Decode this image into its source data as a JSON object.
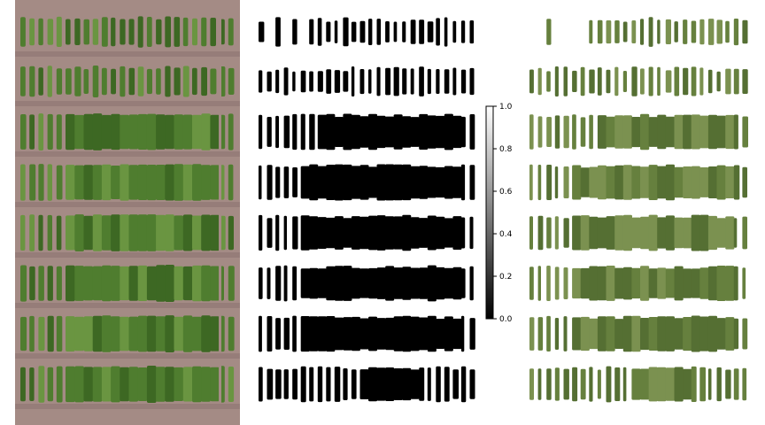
{
  "figure": {
    "panels": [
      {
        "name": "rgb-orthomosaic",
        "kind": "aerial photograph of field plots"
      },
      {
        "name": "binary-canopy-mask",
        "kind": "black/white vegetation mask"
      },
      {
        "name": "masked-rgb",
        "kind": "vegetation pixels only on white background"
      }
    ],
    "plot_rows": 8,
    "colors": {
      "soil": "#a48b85",
      "soil_dark": "#8e7571",
      "plant": "#4f7d2f",
      "plant_dark": "#3d6823",
      "plant_light": "#6a9541",
      "mask_fill": "#000000",
      "masked_plant": "#66803e"
    }
  },
  "colorbar": {
    "min": 0.0,
    "max": 1.0,
    "colormap": "gray",
    "ticks": [
      "0.0",
      "0.2",
      "0.4",
      "0.6",
      "0.8",
      "1.0"
    ]
  }
}
